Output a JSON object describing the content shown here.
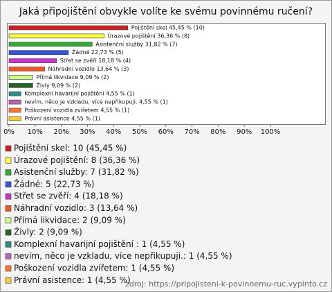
{
  "chart_data": {
    "type": "bar",
    "orientation": "horizontal",
    "title": "Jaká připojištění obvykle volíte ke svému povinnému ručení?",
    "categories": [
      "Pojištění skel",
      "Úrazové pojištění",
      "Asistenční služby",
      "Žádné",
      "Střet se zvěří",
      "Náhradní vozidlo",
      "Přímá likvidace",
      "Živly",
      "Komplexní havarijní pojištění",
      "nevím, něco je vzkladu, více nepřikupuji.",
      "Poškození vozidla zvířetem",
      "Právní asistence"
    ],
    "values": [
      45.45,
      36.36,
      31.82,
      22.73,
      18.18,
      13.64,
      9.09,
      9.09,
      4.55,
      4.55,
      4.55,
      4.55
    ],
    "value_labels": [
      "Pojištění skel 45,45 % (10)",
      "Úrazové pojištění 36,36 % (8)",
      "Asistenční služby 31,82 % (7)",
      "Žádné 22,73 % (5)",
      "Střet se zvěří 18,18 % (4)",
      "Náhradní vozidlo 13,64 % (3)",
      "Přímá likvidace 9,09 % (2)",
      "Živly 9,09 % (2)",
      "Komplexní havarijní pojištění  4,55 % (1)",
      "nevím, něco je vzkladu, více nepřikupuji. 4,55 % (1)",
      "Poškození vozidla zvířetem 4,55 % (1)",
      "Právní asistence 4,55 % (1)"
    ],
    "legend_labels": [
      "Pojištění skel: 10 (45,45 %)",
      "Úrazové pojištění: 8 (36,36 %)",
      "Asistenční služby: 7 (31,82 %)",
      "Žádné: 5 (22,73 %)",
      "Střet se zvěří: 4 (18,18 %)",
      "Náhradní vozidlo: 3 (13,64 %)",
      "Přímá likvidace: 2 (9,09 %)",
      "Živly: 2 (9,09 %)",
      "Komplexní havarijní pojištění : 1 (4,55 %)",
      "nevím, něco je vzkladu, více nepřikupuji.: 1 (4,55 %)",
      "Poškození vozidla zvířetem: 1 (4,55 %)",
      "Právní asistence: 1 (4,55 %)"
    ],
    "colors": [
      "#cc2222",
      "#ffff44",
      "#33aa33",
      "#3355dd",
      "#cc33cc",
      "#ee5522",
      "#ccff88",
      "#226622",
      "#338888",
      "#bb66aa",
      "#ff7733",
      "#ffcc33"
    ],
    "xlim": [
      0,
      100
    ],
    "xticks": [
      {
        "value": 0,
        "label": "0%"
      },
      {
        "value": 10,
        "label": "10%"
      },
      {
        "value": 20,
        "label": "20%"
      },
      {
        "value": 30,
        "label": "30%"
      },
      {
        "value": 40,
        "label": "40%"
      },
      {
        "value": 50,
        "label": "50%"
      },
      {
        "value": 60,
        "label": "60%"
      },
      {
        "value": 70,
        "label": "70%"
      },
      {
        "value": 80,
        "label": "80%"
      },
      {
        "value": 90,
        "label": "90%"
      },
      {
        "value": 100,
        "label": "100%"
      }
    ],
    "source": "zdroj: https://pripojisteni-k-povinnemu-ruc.vyplnto.cz"
  }
}
